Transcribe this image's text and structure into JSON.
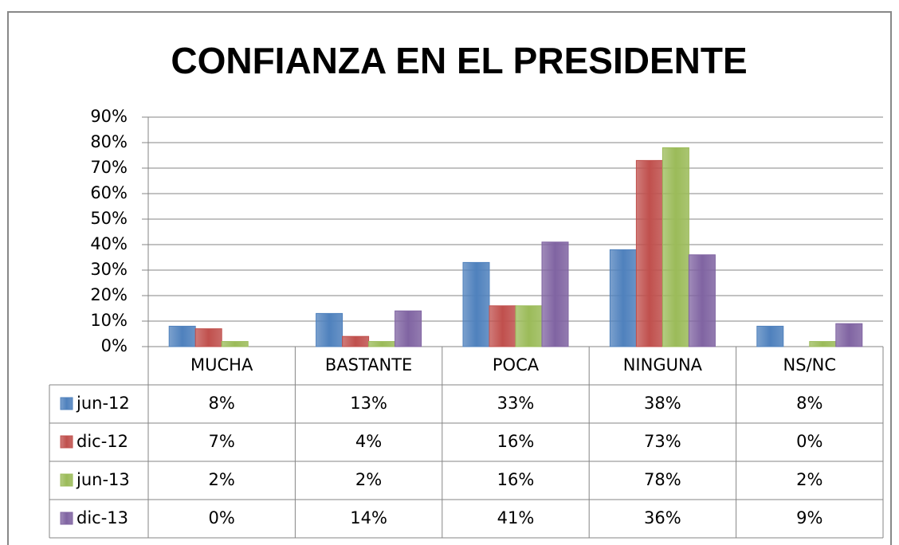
{
  "chart_data": {
    "type": "bar",
    "title": "CONFIANZA EN EL PRESIDENTE",
    "categories": [
      "MUCHA",
      "BASTANTE",
      "POCA",
      "NINGUNA",
      "NS/NC"
    ],
    "series": [
      {
        "name": "jun-12",
        "color": "#4f81bd",
        "values": [
          8,
          13,
          33,
          38,
          8
        ],
        "value_labels": [
          "8%",
          "13%",
          "33%",
          "38%",
          "8%"
        ]
      },
      {
        "name": "dic-12",
        "color": "#c0504d",
        "values": [
          7,
          4,
          16,
          73,
          0
        ],
        "value_labels": [
          "7%",
          "4%",
          "16%",
          "73%",
          "0%"
        ]
      },
      {
        "name": "jun-13",
        "color": "#9bbb59",
        "values": [
          2,
          2,
          16,
          78,
          2
        ],
        "value_labels": [
          "2%",
          "2%",
          "16%",
          "78%",
          "2%"
        ]
      },
      {
        "name": "dic-13",
        "color": "#8064a2",
        "values": [
          0,
          14,
          41,
          36,
          9
        ],
        "value_labels": [
          "0%",
          "14%",
          "41%",
          "36%",
          "9%"
        ]
      }
    ],
    "ylim": [
      0,
      90
    ],
    "yticks": [
      {
        "value": 0,
        "label": "0%"
      },
      {
        "value": 10,
        "label": "10%"
      },
      {
        "value": 20,
        "label": "20%"
      },
      {
        "value": 30,
        "label": "30%"
      },
      {
        "value": 40,
        "label": "40%"
      },
      {
        "value": 50,
        "label": "50%"
      },
      {
        "value": 60,
        "label": "60%"
      },
      {
        "value": 70,
        "label": "70%"
      },
      {
        "value": 80,
        "label": "80%"
      },
      {
        "value": 90,
        "label": "90%"
      }
    ],
    "grid": true
  }
}
